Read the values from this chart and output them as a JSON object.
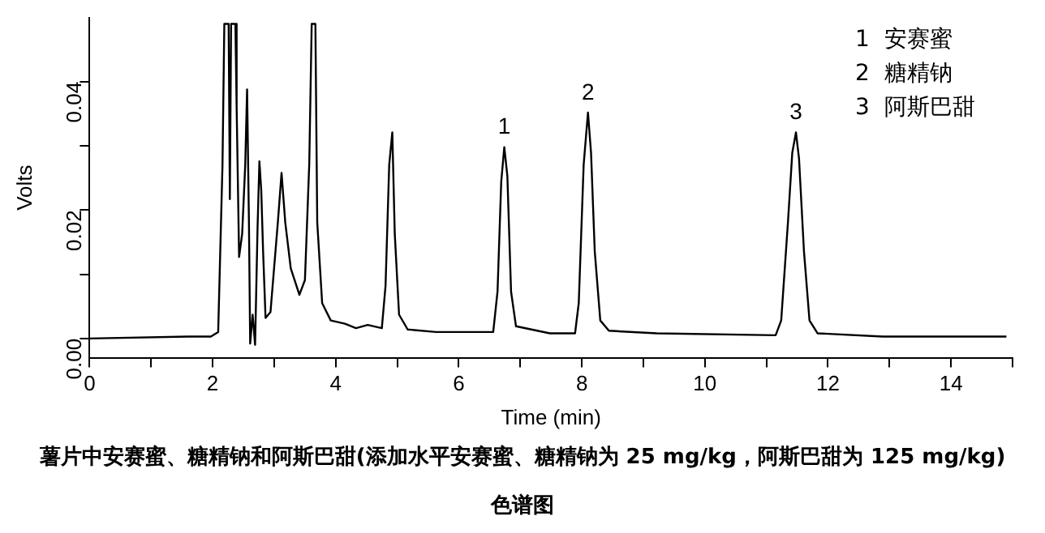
{
  "chart_data": {
    "type": "line",
    "xlabel": "Time (min)",
    "ylabel": "Volts",
    "xlim": [
      0,
      15
    ],
    "xticks": [
      0,
      {
        "value": 1,
        "label": null
      },
      2,
      {
        "value": 3,
        "label": null
      },
      4,
      {
        "value": 5,
        "label": null
      },
      6,
      {
        "value": 7,
        "label": null
      },
      8,
      {
        "value": 9,
        "label": null
      },
      10,
      {
        "value": 11,
        "label": null
      },
      12,
      {
        "value": 13,
        "label": null
      },
      14,
      {
        "value": 15,
        "label": null
      }
    ],
    "ylim": [
      -0.003,
      0.05
    ],
    "yticks": [
      {
        "value": 0,
        "label": "0.00"
      },
      {
        "value": 0.01,
        "label": null
      },
      {
        "value": 0.02,
        "label": "0.02"
      },
      {
        "value": 0.03,
        "label": null
      },
      {
        "value": 0.04,
        "label": "0.04"
      }
    ],
    "grid": false,
    "legend": false,
    "marker": "none",
    "line_style": "solid",
    "series": [
      {
        "color": "#000000",
        "x": [
          0,
          1.6,
          1.97,
          2.09,
          2.16,
          2.19,
          2.26,
          2.28,
          2.3,
          2.37,
          2.39,
          2.43,
          2.48,
          2.53,
          2.56,
          2.59,
          2.61,
          2.65,
          2.69,
          2.73,
          2.76,
          2.79,
          2.82,
          2.86,
          2.94,
          3.06,
          3.12,
          3.18,
          3.27,
          3.41,
          3.5,
          3.57,
          3.61,
          3.67,
          3.7,
          3.78,
          3.92,
          4.15,
          4.33,
          4.52,
          4.75,
          4.81,
          4.87,
          4.92,
          4.96,
          5.03,
          5.17,
          5.63,
          6.56,
          6.63,
          6.69,
          6.74,
          6.79,
          6.85,
          6.93,
          7.48,
          7.89,
          7.95,
          8.03,
          8.1,
          8.15,
          8.21,
          8.3,
          8.44,
          9.22,
          11.15,
          11.24,
          11.35,
          11.42,
          11.48,
          11.53,
          11.61,
          11.7,
          11.83,
          12.89,
          14.9
        ],
        "values": [
          0,
          0.0003,
          0.0003,
          0.001,
          0.027,
          0.049,
          0.049,
          0.0217,
          0.049,
          0.049,
          0.0361,
          0.0127,
          0.0163,
          0.0271,
          0.0388,
          0.0181,
          -0.0008,
          0.0037,
          -0.001,
          0.0172,
          0.0276,
          0.0231,
          0.0136,
          0.0032,
          0.0041,
          0.0181,
          0.0258,
          0.0181,
          0.0109,
          0.0068,
          0.0091,
          0.0271,
          0.049,
          0.049,
          0.0181,
          0.0055,
          0.0028,
          0.0023,
          0.0016,
          0.0021,
          0.0016,
          0.0082,
          0.0271,
          0.0321,
          0.0163,
          0.0037,
          0.0014,
          0.001,
          0.001,
          0.0073,
          0.0244,
          0.0298,
          0.0253,
          0.0073,
          0.0019,
          0.0008,
          0.0008,
          0.0055,
          0.0271,
          0.0352,
          0.0289,
          0.0136,
          0.0028,
          0.0012,
          0.0008,
          0.0005,
          0.0028,
          0.0181,
          0.0289,
          0.0321,
          0.028,
          0.0136,
          0.0028,
          0.0008,
          0.0003,
          0.0003
        ]
      }
    ],
    "annotations": [
      {
        "text": "1",
        "x": 6.74,
        "y": 0.0298
      },
      {
        "text": "2",
        "x": 8.1,
        "y": 0.0352
      },
      {
        "text": "3",
        "x": 11.48,
        "y": 0.0321
      },
      "1  安赛蜜",
      "2  糖精钠",
      "3  阿斯巴甜",
      "薯片中安赛蜜、糖精钠和阿斯巴甜(添加水平安赛蜜、糖精钠为 25 mg/kg，阿斯巴甜为 125 mg/kg)色谱图"
    ]
  }
}
